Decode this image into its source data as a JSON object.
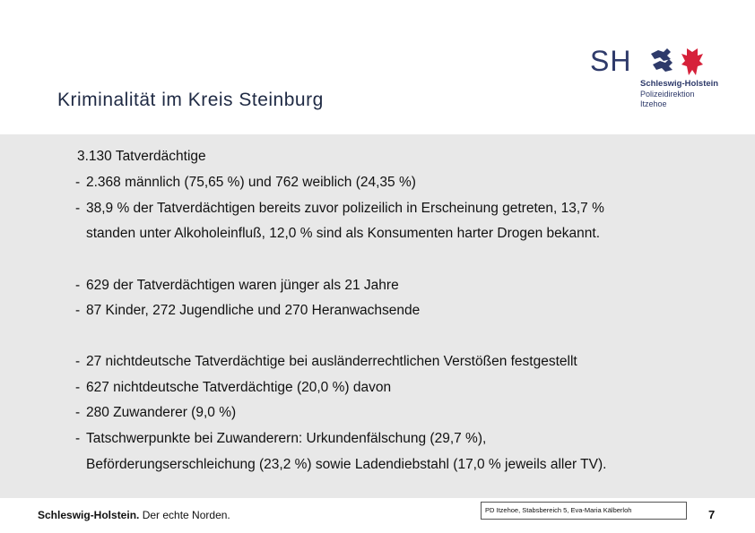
{
  "header": {
    "title": "Kriminalität im Kreis Steinburg"
  },
  "logo": {
    "abbrev": "SH",
    "name": "Schleswig-Holstein",
    "department": "Polizeidirektion",
    "location": "Itzehoe",
    "icon": "lions-and-nettle-leaf-icon",
    "colors": {
      "navy": "#2e3a6a",
      "red": "#d6213a"
    }
  },
  "content": {
    "headline": "3.130 Tatverdächtige",
    "bullets": [
      {
        "lines": [
          "2.368 männlich (75,65 %) und 762 weiblich (24,35 %)"
        ]
      },
      {
        "lines": [
          "38,9 % der Tatverdächtigen bereits zuvor polizeilich in Erscheinung getreten, 13,7 %",
          "standen unter Alkoholeinfluß, 12,0 % sind als Konsumenten harter Drogen bekannt."
        ]
      },
      {
        "lines": [
          "629 der Tatverdächtigen waren jünger als 21 Jahre"
        ]
      },
      {
        "lines": [
          "87 Kinder, 272 Jugendliche und 270 Heranwachsende"
        ]
      },
      {
        "lines": [
          "27 nichtdeutsche Tatverdächtige bei ausländerrechtlichen Verstößen festgestellt"
        ]
      },
      {
        "lines": [
          "627 nichtdeutsche Tatverdächtige (20,0 %) davon"
        ]
      },
      {
        "lines": [
          "280 Zuwanderer (9,0 %)"
        ]
      },
      {
        "lines": [
          "Tatschwerpunkte bei Zuwanderern: Urkundenfälschung (29,7 %),",
          "Beförderungserschleichung (23,2 %) sowie Ladendiebstahl (17,0 % jeweils aller TV)."
        ]
      }
    ],
    "bullet_marker": "-"
  },
  "footer": {
    "brand_bold": "Schleswig-Holstein.",
    "brand_slogan": " Der echte Norden.",
    "credit": "PD Itzehoe, Stabsbereich 5, Eva-Maria Kälberloh",
    "page_number": "7"
  }
}
